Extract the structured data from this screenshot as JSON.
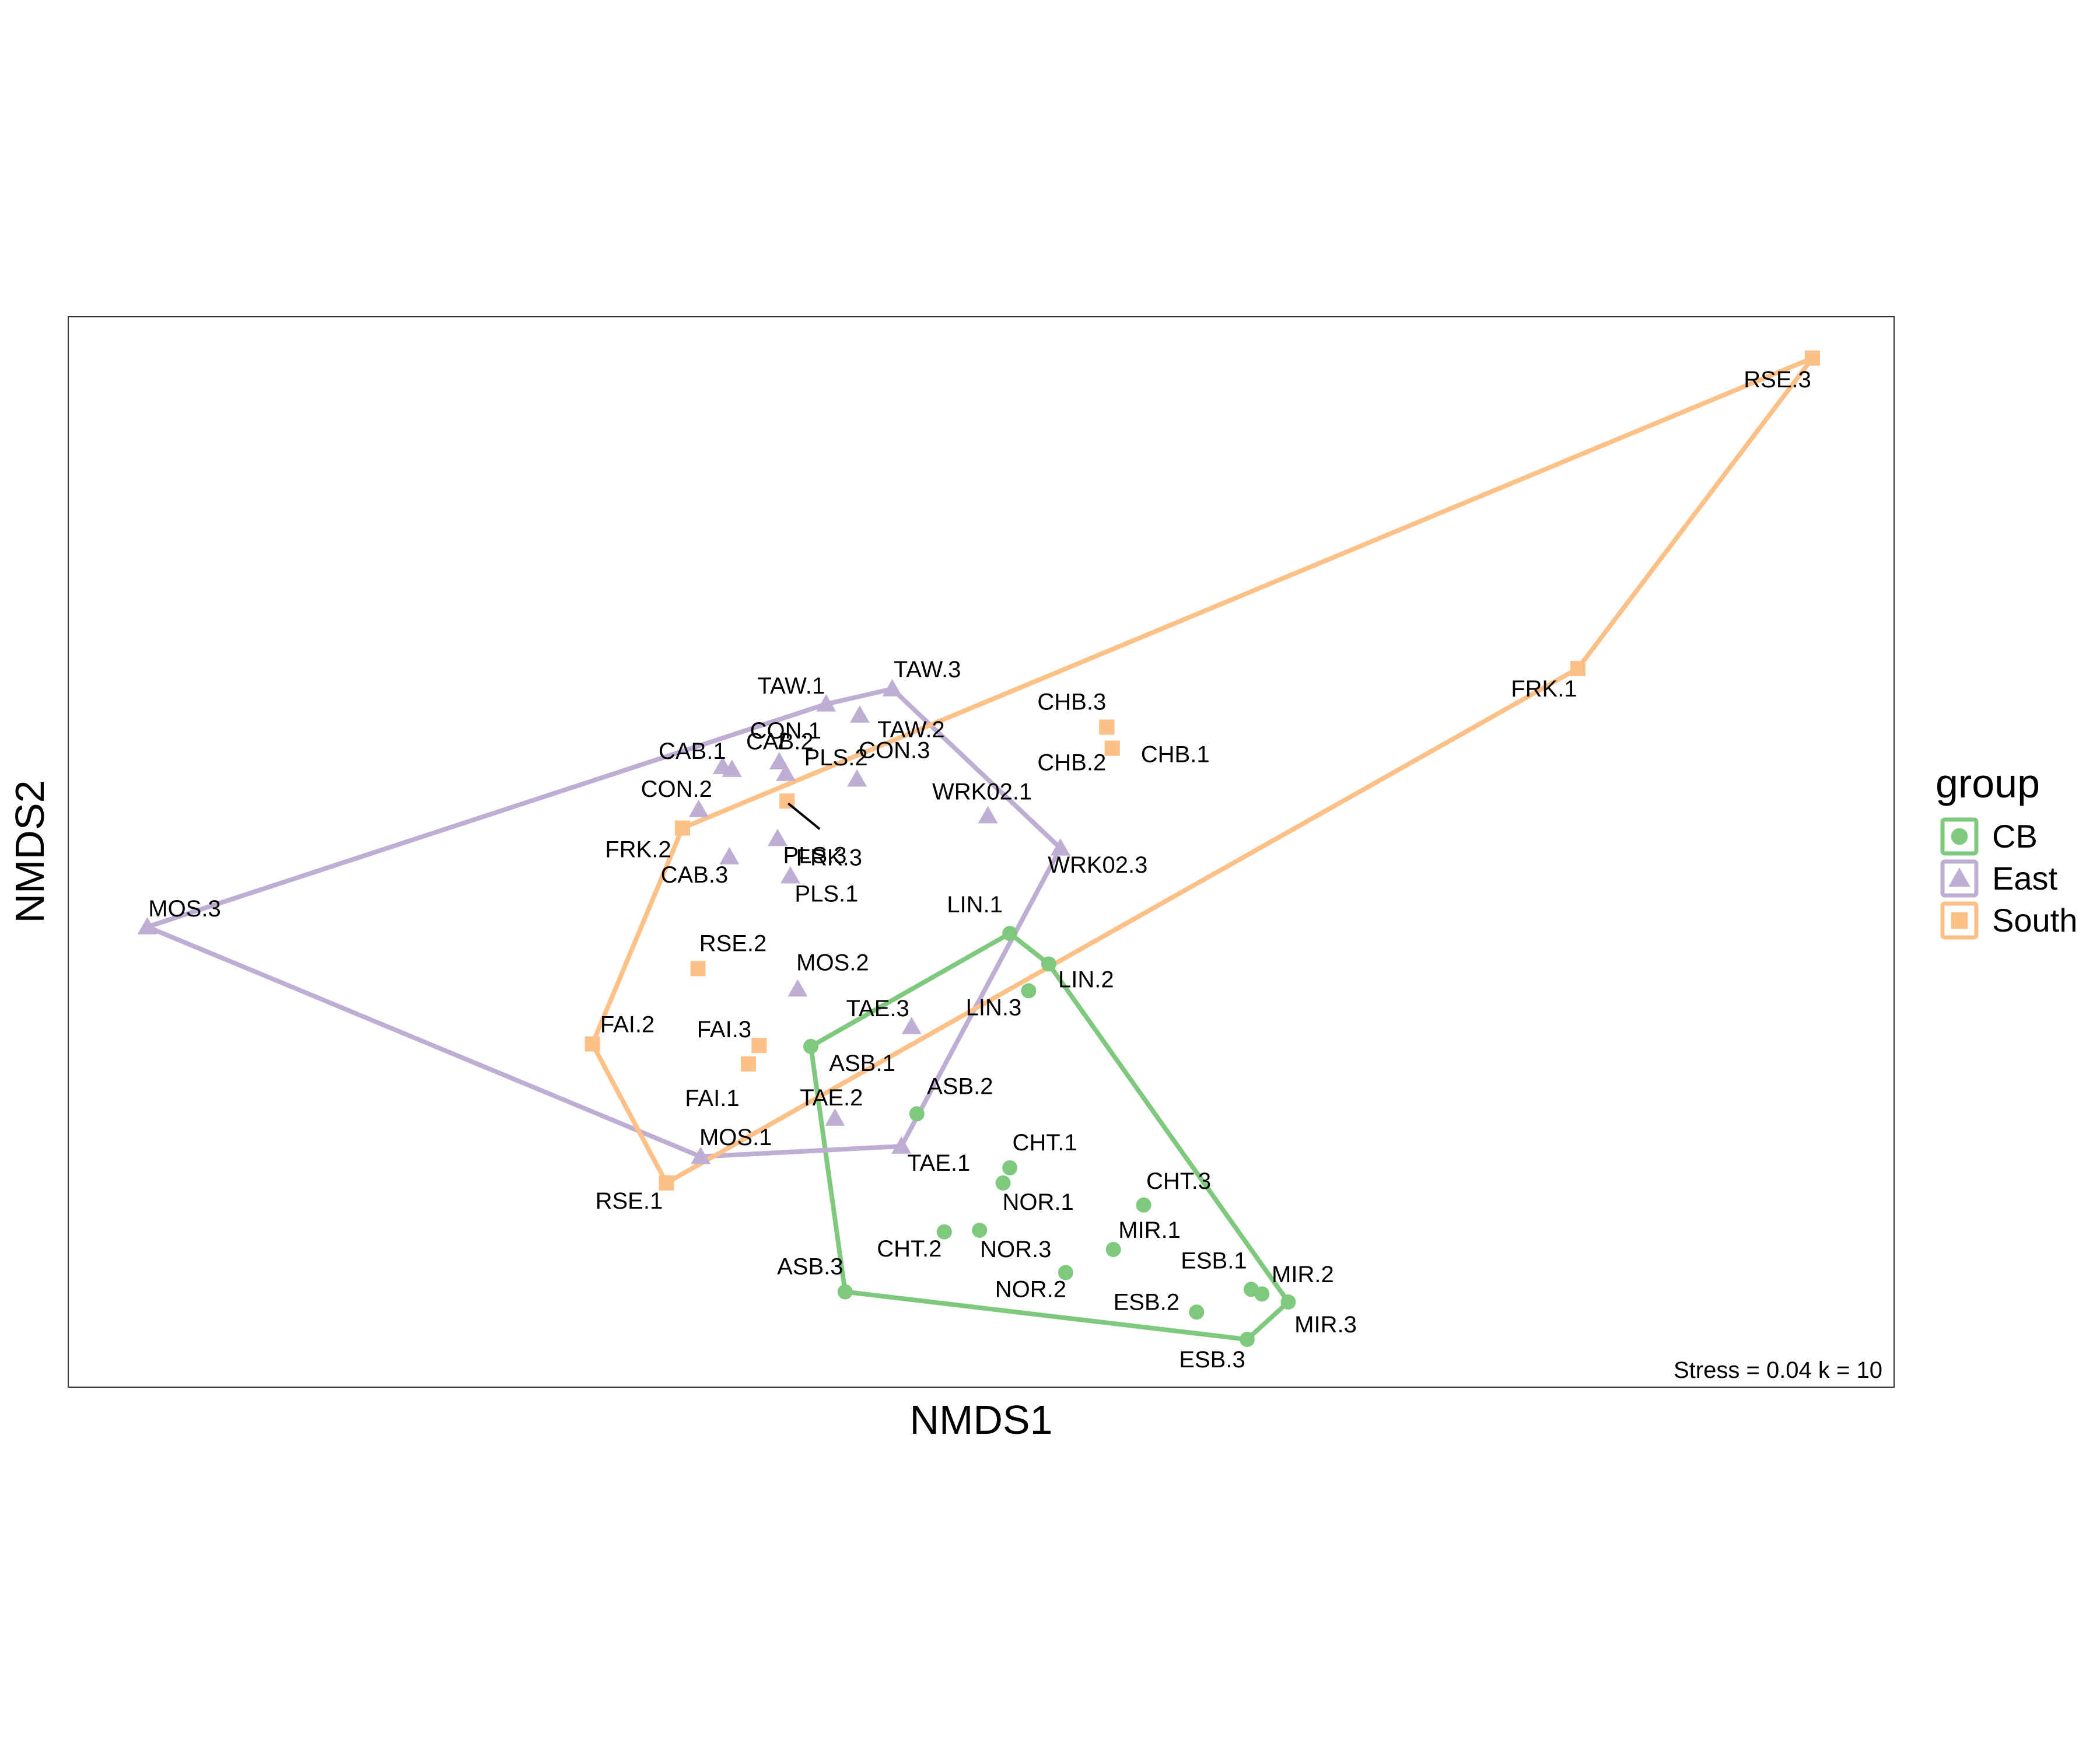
{
  "chart_data": {
    "type": "scatter",
    "title": "",
    "xlabel": "NMDS1",
    "ylabel": "NMDS2",
    "annotation": "Stress = 0.04 k = 10",
    "xlim": [
      0,
      1000
    ],
    "ylim": [
      0,
      650
    ],
    "axis_ticks": false,
    "grid": false,
    "hulls": true,
    "legend": {
      "title": "group",
      "placement": "right",
      "entries": [
        {
          "name": "CB",
          "color": "#7fc97f",
          "shape": "circle"
        },
        {
          "name": "East",
          "color": "#beaed4",
          "shape": "triangle"
        },
        {
          "name": "South",
          "color": "#fdc086",
          "shape": "square"
        }
      ]
    },
    "series": [
      {
        "name": "CB",
        "points": [
          {
            "label": "LIN.1",
            "x": 515.7,
            "y": 275.5
          },
          {
            "label": "LIN.2",
            "x": 537.0,
            "y": 257.0
          },
          {
            "label": "LIN.3",
            "x": 526.0,
            "y": 240.7
          },
          {
            "label": "ASB.1",
            "x": 406.7,
            "y": 206.9
          },
          {
            "label": "ASB.2",
            "x": 464.8,
            "y": 166.0
          },
          {
            "label": "ASB.3",
            "x": 425.5,
            "y": 57.9
          },
          {
            "label": "CHT.1",
            "x": 515.7,
            "y": 133.2
          },
          {
            "label": "CHT.2",
            "x": 479.8,
            "y": 94.3
          },
          {
            "label": "CHT.3",
            "x": 589.0,
            "y": 110.6
          },
          {
            "label": "NOR.1",
            "x": 512.0,
            "y": 124.0
          },
          {
            "label": "NOR.2",
            "x": 546.3,
            "y": 69.6
          },
          {
            "label": "NOR.3",
            "x": 499.1,
            "y": 95.3
          },
          {
            "label": "MIR.1",
            "x": 572.4,
            "y": 83.6
          },
          {
            "label": "MIR.2",
            "x": 653.8,
            "y": 56.6
          },
          {
            "label": "MIR.3",
            "x": 668.2,
            "y": 51.7
          },
          {
            "label": "ESB.1",
            "x": 647.9,
            "y": 59.4
          },
          {
            "label": "ESB.2",
            "x": 618.0,
            "y": 45.6
          },
          {
            "label": "ESB.3",
            "x": 645.7,
            "y": 29.0
          }
        ]
      },
      {
        "name": "East",
        "points": [
          {
            "label": "TAW.1",
            "x": 415.1,
            "y": 414.8
          },
          {
            "label": "TAW.2",
            "x": 433.5,
            "y": 408.0
          },
          {
            "label": "TAW.3",
            "x": 451.3,
            "y": 424.0
          },
          {
            "label": "CON.1",
            "x": 389.4,
            "y": 379.7
          },
          {
            "label": "CON.2",
            "x": 345.3,
            "y": 350.7
          },
          {
            "label": "CON.3",
            "x": 432.0,
            "y": 369.2
          },
          {
            "label": "CAB.1",
            "x": 363.5,
            "y": 375.1
          },
          {
            "label": "CAB.2",
            "x": 358.4,
            "y": 376.8
          },
          {
            "label": "CAB.3",
            "x": 362.1,
            "y": 322.0
          },
          {
            "label": "PLS.1",
            "x": 395.5,
            "y": 310.4
          },
          {
            "label": "PLS.2",
            "x": 393.0,
            "y": 372.6
          },
          {
            "label": "PLS.3",
            "x": 388.5,
            "y": 333.1
          },
          {
            "label": "WRK02.1",
            "x": 503.7,
            "y": 346.9
          },
          {
            "label": "WRK02.3",
            "x": 543.4,
            "y": 327.3
          },
          {
            "label": "MOS.1",
            "x": 346.4,
            "y": 140.0
          },
          {
            "label": "MOS.2",
            "x": 399.5,
            "y": 241.7
          },
          {
            "label": "MOS.3",
            "x": 43.3,
            "y": 279.5
          },
          {
            "label": "TAE.1",
            "x": 456.3,
            "y": 146.3
          },
          {
            "label": "TAE.2",
            "x": 419.9,
            "y": 163.3
          },
          {
            "label": "TAE.3",
            "x": 461.9,
            "y": 218.9
          }
        ]
      },
      {
        "name": "South",
        "points": [
          {
            "label": "RSE.1",
            "x": 327.6,
            "y": 124.0
          },
          {
            "label": "RSE.2",
            "x": 344.9,
            "y": 254.1
          },
          {
            "label": "RSE.3",
            "x": 955.3,
            "y": 624.9
          },
          {
            "label": "FRK.1",
            "x": 826.8,
            "y": 436.4
          },
          {
            "label": "FRK.2",
            "x": 336.4,
            "y": 339.5
          },
          {
            "label": "FRK.3",
            "x": 393.7,
            "y": 355.9
          },
          {
            "label": "CHB.1",
            "x": 571.8,
            "y": 388.0
          },
          {
            "label": "CHB.2",
            "x": 568.8,
            "y": 400.8
          },
          {
            "label": "CHB.3",
            "x": 568.8,
            "y": 400.8
          },
          {
            "label": "FAI.1",
            "x": 372.5,
            "y": 196.3
          },
          {
            "label": "FAI.2",
            "x": 287.1,
            "y": 208.4
          },
          {
            "label": "FAI.3",
            "x": 378.4,
            "y": 207.5
          }
        ]
      }
    ]
  }
}
